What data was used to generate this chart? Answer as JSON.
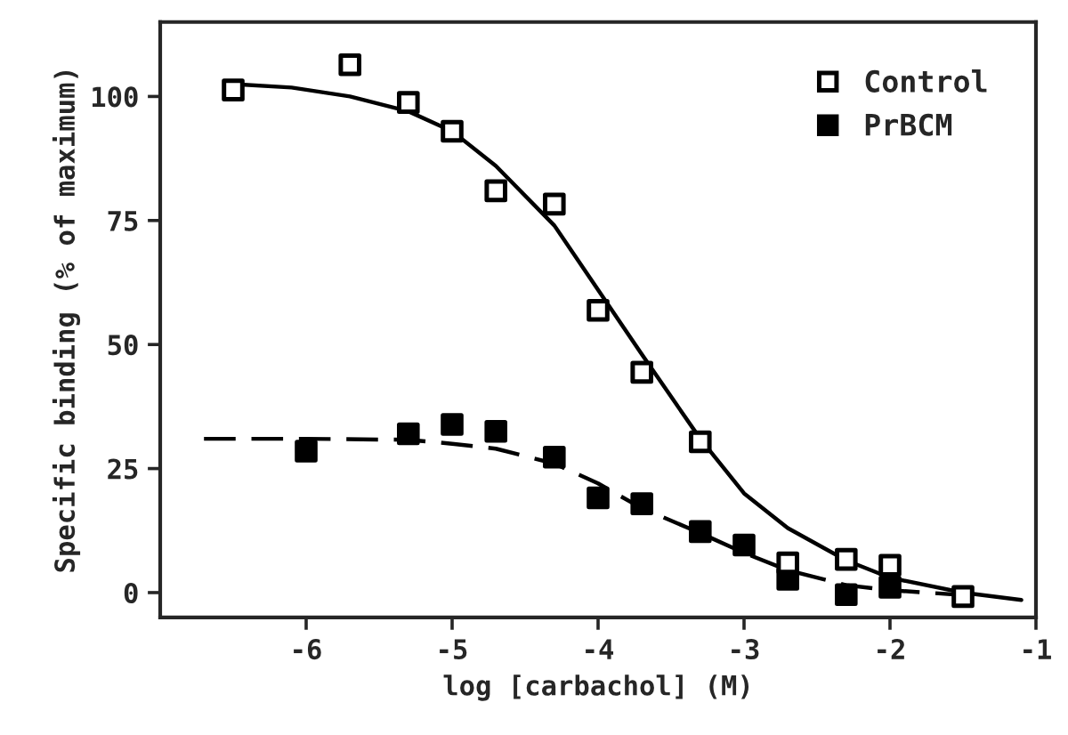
{
  "chart_data": {
    "type": "scatter",
    "xlabel": "log [carbachol] (M)",
    "ylabel": "Specific binding (% of maximum)",
    "xlim": [
      -7,
      -1
    ],
    "xticks": [
      -6,
      -5,
      -4,
      -3,
      -2,
      -1
    ],
    "ylim": [
      -5,
      115
    ],
    "yticks": [
      0,
      25,
      50,
      75,
      100
    ],
    "grid": false,
    "legend": "top right",
    "series": [
      {
        "type": "line",
        "color": "#000000",
        "line_style": "solid",
        "marker": "none",
        "x": [
          -6.5,
          -6.1,
          -5.7,
          -5.3,
          -5.0,
          -4.7,
          -4.3,
          -4.0,
          -3.7,
          -3.3,
          -3.0,
          -2.7,
          -2.3,
          -2.0,
          -1.5,
          -1.1
        ],
        "values": [
          102.5,
          101.8,
          100,
          97,
          93,
          86,
          74,
          61,
          48,
          31,
          20,
          13,
          6.5,
          3,
          0,
          -1.5
        ]
      },
      {
        "type": "line",
        "color": "#000000",
        "line_style": "dashed",
        "marker": "none",
        "x": [
          -6.7,
          -6.0,
          -5.3,
          -5.0,
          -4.7,
          -4.3,
          -4.0,
          -3.7,
          -3.3,
          -3.0,
          -2.7,
          -2.3,
          -2.0,
          -1.5
        ],
        "values": [
          31,
          31,
          30.8,
          30,
          29,
          26,
          22,
          17,
          12,
          8,
          4.5,
          1.5,
          0.5,
          -0.5
        ]
      },
      {
        "name": "Control",
        "color": "#ffffff",
        "marker": "square",
        "x": [
          -6.5,
          -5.7,
          -5.3,
          -5.0,
          -4.7,
          -4.3,
          -4.0,
          -3.7,
          -3.3,
          -2.7,
          -2.3,
          -2.0,
          -1.5
        ],
        "values": [
          101.3,
          106.4,
          98.8,
          93,
          81,
          78.3,
          56.9,
          44.4,
          30.4,
          6,
          6.7,
          5.5,
          -0.8
        ]
      },
      {
        "name": "PrBCM",
        "color": "#000000",
        "marker": "square",
        "x": [
          -6.0,
          -5.3,
          -5.0,
          -4.7,
          -4.3,
          -4.0,
          -3.7,
          -3.3,
          -3.0,
          -2.7,
          -2.3,
          -2.0
        ],
        "values": [
          28.5,
          32,
          33.9,
          32.5,
          27.3,
          19.1,
          17.9,
          12.3,
          9.6,
          2.7,
          -0.4,
          1.1
        ]
      }
    ]
  }
}
